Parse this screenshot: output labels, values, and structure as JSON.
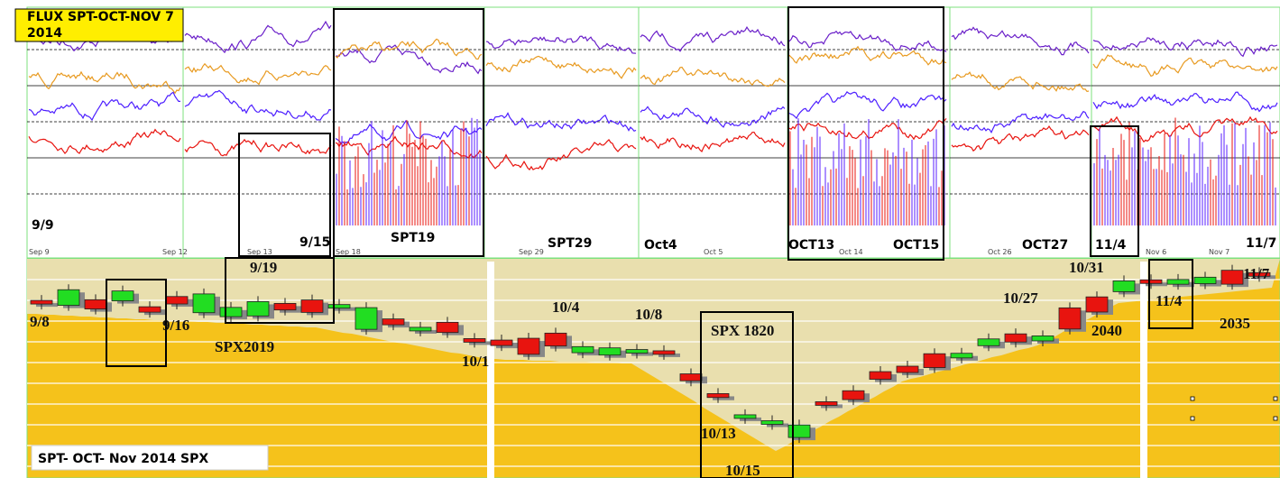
{
  "header": {
    "title": [
      "FLUX SPT-OCT-NOV 7",
      "2014"
    ]
  },
  "top_labels": [
    "9/9",
    "9/15",
    "SPT19",
    "SPT29",
    "Oct4",
    "OCT13",
    "OCT15",
    "OCT27",
    "11/4",
    "11/7"
  ],
  "top_dates": [
    "Sep 9",
    "Sep 12",
    "Sep 13",
    "Sep 18",
    "Sep 29",
    "Oct 5",
    "Oct 14",
    "Oct 26",
    "Nov 6",
    "Nov 7"
  ],
  "bottom_labels": [
    "9/8",
    "9/16",
    "9/19",
    "SPX2019",
    "10/1",
    "10/4",
    "10/8",
    "SPX 1820",
    "10/13",
    "10/15",
    "10/27",
    "10/31",
    "11/4",
    "2040",
    "2035",
    "11/7"
  ],
  "legend": "SPT- OCT- Nov 2014 SPX"
}
